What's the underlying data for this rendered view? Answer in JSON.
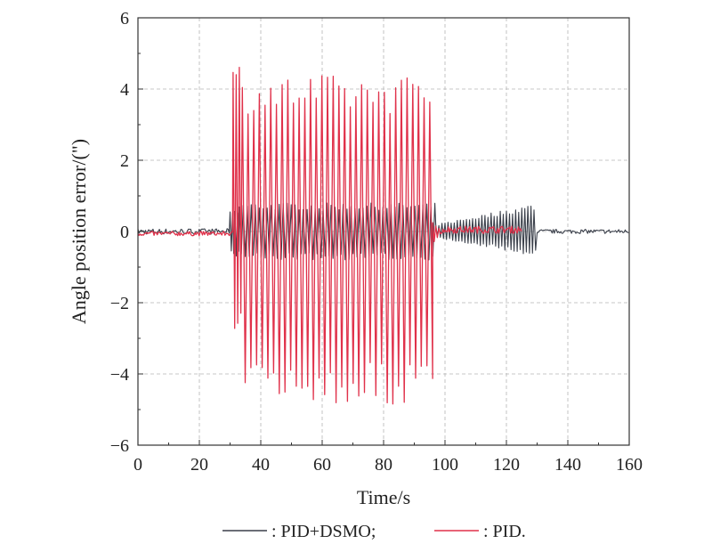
{
  "chart_data": {
    "type": "line",
    "title": "",
    "xlabel": "Time/s",
    "ylabel": "Angle position error/(\")",
    "xlim": [
      0,
      160
    ],
    "ylim": [
      -6,
      6
    ],
    "x_ticks": [
      0,
      20,
      40,
      60,
      80,
      100,
      120,
      140,
      160
    ],
    "y_ticks": [
      -6,
      -4,
      -2,
      0,
      2,
      4,
      6
    ],
    "grid": true,
    "legend_position": "bottom",
    "series": [
      {
        "name": ": PID+DSMO;",
        "color": "#3a3f4a",
        "segments": [
          {
            "t0": 0,
            "t1": 30,
            "period": 0.8,
            "amp_hi": 0.08,
            "amp_lo": -0.08,
            "shape": "noise"
          },
          {
            "t0": 30,
            "t1": 33,
            "period": 0.8,
            "amp_hi": 0.6,
            "amp_lo": -0.7,
            "shape": "transient"
          },
          {
            "t0": 33,
            "t1": 97,
            "period": 1.3,
            "amp_hi": 0.8,
            "amp_lo": -0.8,
            "shape": "oscillation"
          },
          {
            "t0": 97,
            "t1": 130,
            "period": 1.0,
            "amp_hi": 0.8,
            "amp_lo": -0.7,
            "shape": "growing"
          },
          {
            "t0": 130,
            "t1": 160,
            "period": 0.8,
            "amp_hi": 0.06,
            "amp_lo": -0.06,
            "shape": "noise"
          }
        ]
      },
      {
        "name": ": PID.",
        "color": "#e0314a",
        "segments": [
          {
            "t0": 0,
            "t1": 31,
            "period": 0.8,
            "amp_hi": 0.0,
            "amp_lo": -0.12,
            "shape": "noise"
          },
          {
            "t0": 31,
            "t1": 34,
            "period": 1.0,
            "amp_hi": 4.8,
            "amp_lo": -2.8,
            "shape": "transient"
          },
          {
            "t0": 34,
            "t1": 96,
            "period": 1.85,
            "amp_hi": 4.4,
            "amp_lo": -4.9,
            "shape": "oscillation"
          },
          {
            "t0": 96,
            "t1": 99,
            "period": 1.0,
            "amp_hi": 0.3,
            "amp_lo": -0.4,
            "shape": "decay"
          },
          {
            "t0": 99,
            "t1": 125,
            "period": 0.9,
            "amp_hi": 0.15,
            "amp_lo": -0.05,
            "shape": "noise"
          }
        ]
      }
    ]
  }
}
